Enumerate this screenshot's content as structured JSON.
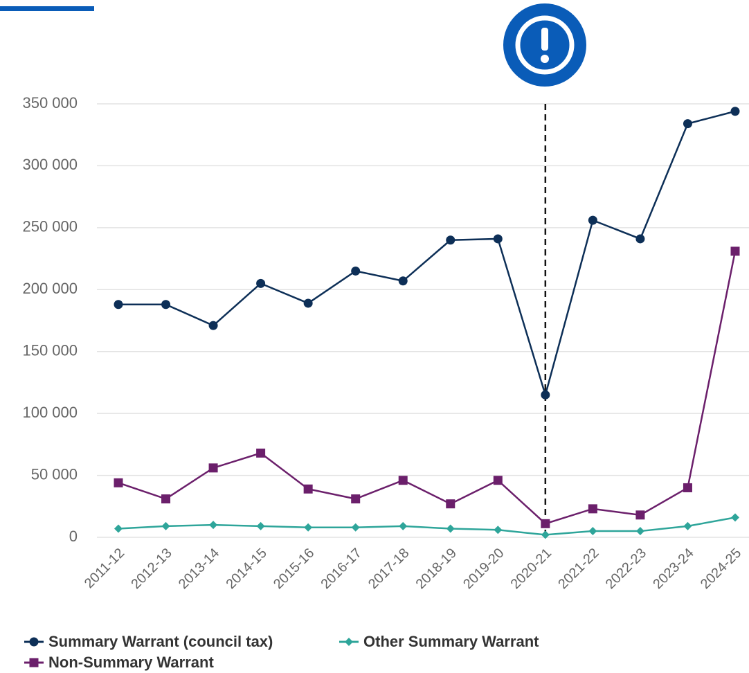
{
  "chart_data": {
    "type": "line",
    "categories": [
      "2011-12",
      "2012-13",
      "2013-14",
      "2014-15",
      "2015-16",
      "2016-17",
      "2017-18",
      "2018-19",
      "2019-20",
      "2020-21",
      "2021-22",
      "2022-23",
      "2023-24",
      "2024-25"
    ],
    "series": [
      {
        "name": "Summary Warrant (council tax)",
        "color": "#0d2f57",
        "marker": "circle",
        "values": [
          188000,
          188000,
          171000,
          205000,
          189000,
          215000,
          207000,
          240000,
          241000,
          115000,
          256000,
          241000,
          334000,
          344000
        ]
      },
      {
        "name": "Other Summary Warrant",
        "color": "#2ea59a",
        "marker": "diamond",
        "values": [
          7000,
          9000,
          10000,
          9000,
          8000,
          8000,
          9000,
          7000,
          6000,
          2000,
          5000,
          5000,
          9000,
          16000
        ]
      },
      {
        "name": "Non-Summary Warrant",
        "color": "#6b1f6b",
        "marker": "square",
        "values": [
          44000,
          31000,
          56000,
          68000,
          39000,
          31000,
          46000,
          27000,
          46000,
          11000,
          23000,
          18000,
          40000,
          231000
        ]
      }
    ],
    "ylim": [
      0,
      350000
    ],
    "yticks": [
      0,
      {
        "value": 50000,
        "label": "50 000"
      },
      {
        "value": 100000,
        "label": "100 000"
      },
      {
        "value": 150000,
        "label": "150 000"
      },
      {
        "value": 200000,
        "label": "200 000"
      },
      {
        "value": 250000,
        "label": "250 000"
      },
      {
        "value": 300000,
        "label": "300 000"
      },
      {
        "value": 350000,
        "label": "350 000"
      }
    ],
    "grid": true,
    "legend": "bottom"
  }
}
